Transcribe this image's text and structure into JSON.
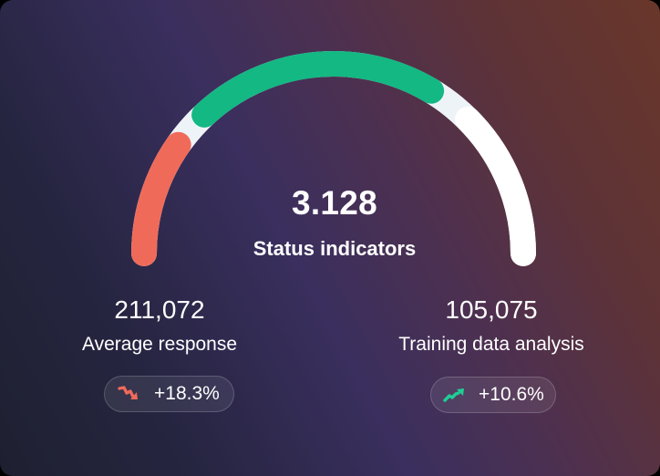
{
  "gauge": {
    "value": "3.128",
    "label": "Status indicators",
    "colors": {
      "track": "#eef3f8",
      "negative": "#f06a5a",
      "positive": "#13b883",
      "remaining": "#ffffff"
    }
  },
  "stats": [
    {
      "value": "211,072",
      "label": "Average response",
      "change": "+18.3%",
      "trend_icon": "trend-down-icon",
      "trend_color": "#f06a5a"
    },
    {
      "value": "105,075",
      "label": "Training data analysis",
      "change": "+10.6%",
      "trend_icon": "trend-up-icon",
      "trend_color": "#1fcf95"
    }
  ],
  "chart_data": {
    "type": "gauge",
    "title": "Status indicators",
    "value": 3.128,
    "segments": [
      {
        "name": "red",
        "color": "#f06a5a",
        "start_deg": 180,
        "end_deg": 145
      },
      {
        "name": "green",
        "color": "#13b883",
        "start_deg": 133,
        "end_deg": 59
      },
      {
        "name": "white",
        "color": "#ffffff",
        "start_deg": 45,
        "end_deg": 0
      }
    ],
    "metrics": [
      {
        "label": "Average response",
        "value": 211072,
        "change": "+18.3%",
        "trend": "down"
      },
      {
        "label": "Training data analysis",
        "value": 105075,
        "change": "+10.6%",
        "trend": "up"
      }
    ]
  }
}
